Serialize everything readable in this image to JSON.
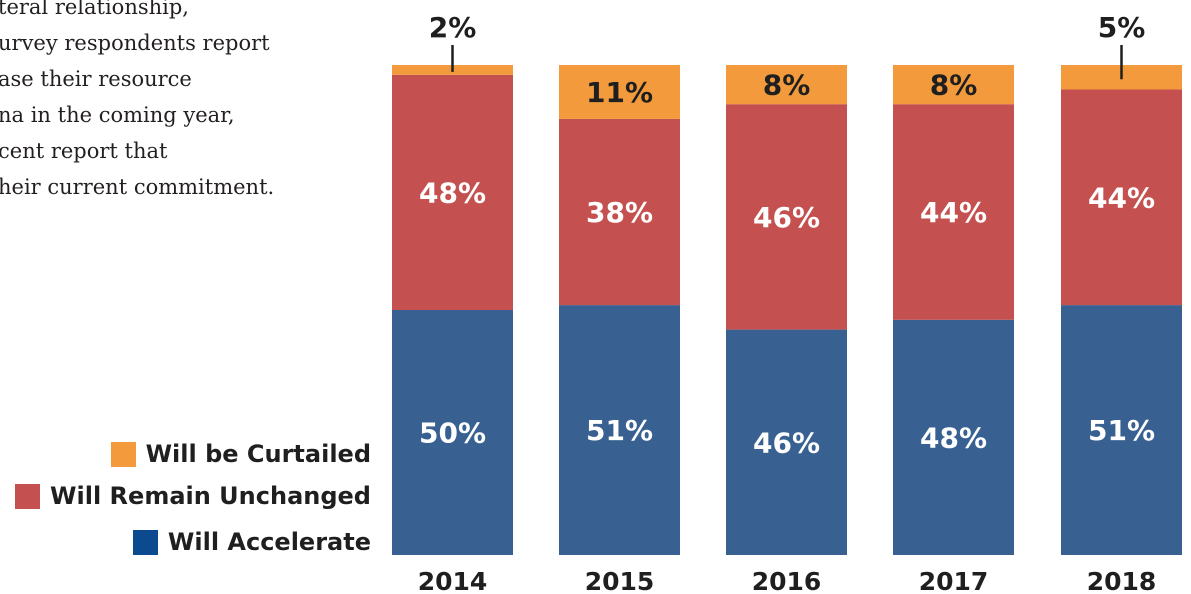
{
  "intro": {
    "lines": [
      "teral relationship,",
      "urvey respondents report",
      "ase their resource",
      "na in the coming year,",
      "cent report that",
      "heir current commitment."
    ]
  },
  "colors": {
    "curtailed": "#f39b3c",
    "unchanged": "#c4504f",
    "accelerate": "#386192",
    "legend_accelerate": "#0c4a8f"
  },
  "legend": [
    {
      "label": "Will be Curtailed",
      "series": "curtailed"
    },
    {
      "label": "Will Remain Unchanged",
      "series": "unchanged"
    },
    {
      "label": "Will Accelerate",
      "series": "accelerate"
    }
  ],
  "chart_data": {
    "type": "bar",
    "stacked": true,
    "categories": [
      "2014",
      "2015",
      "2016",
      "2017",
      "2018"
    ],
    "series": [
      {
        "name": "Will Accelerate",
        "key": "accelerate",
        "values": [
          50,
          51,
          46,
          48,
          51
        ],
        "labels": [
          "50%",
          "51%",
          "46%",
          "48%",
          "51%"
        ]
      },
      {
        "name": "Will Remain Unchanged",
        "key": "unchanged",
        "values": [
          48,
          38,
          46,
          44,
          44
        ],
        "labels": [
          "48%",
          "38%",
          "46%",
          "44%",
          "44%"
        ]
      },
      {
        "name": "Will be Curtailed",
        "key": "curtailed",
        "values": [
          2,
          11,
          8,
          8,
          5
        ],
        "labels": [
          "2%",
          "11%",
          "8%",
          "8%",
          "5%"
        ]
      }
    ],
    "ylim": [
      0,
      100
    ],
    "grid": false,
    "legend_position": "left"
  }
}
